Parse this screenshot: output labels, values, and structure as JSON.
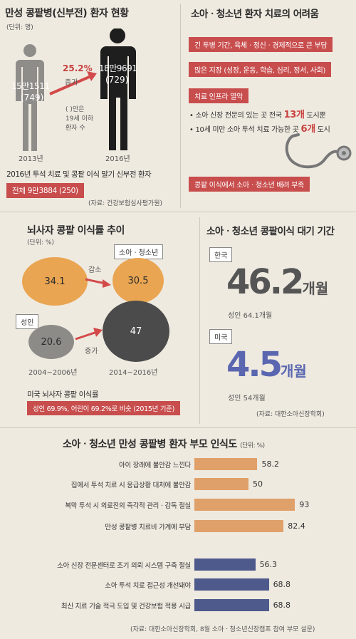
{
  "section1": {
    "title": "만성 콩팥병(신부전) 환자 현황",
    "unit": "(단위: 명)",
    "label_2013": "15만1511",
    "sub_2013": "(749)",
    "label_2016": "18만9691",
    "sub_2016": "(729)",
    "growth_pct": "25.2%",
    "growth_word": "증가",
    "note_line1": "(  )안은",
    "note_line2": "19세 이하",
    "note_line3": "환자 수",
    "year_a": "2013년",
    "year_b": "2016년",
    "sub_title": "2016년 투석 치료 및 콩팥 이식 말기 신부전 환자",
    "total_box": "전체 9만3884 (250)",
    "source": "(자료: 건강보험심사평가원)"
  },
  "section2": {
    "title": "소아ㆍ청소년 환자 치료의 어려움",
    "pill1": "긴 투병 기간, 육체ㆍ정신ㆍ경제적으로 큰 부담",
    "pill2": "많은 지장 (성장, 운동, 학습, 심리, 정서, 사회)",
    "pill3": "치료 인프라 열악",
    "bullet1_pre": "• 소아 신장 전문의 있는 곳  전국 ",
    "bullet1_num": "13개",
    "bullet1_post": " 도시뿐",
    "bullet2_pre": "• 10세 미만 소아 투석 치료 가능한 곳  ",
    "bullet2_num": "6개",
    "bullet2_post": " 도시",
    "pill4": "콩팥 이식에서 소아ㆍ청소년 배려 부족"
  },
  "section3": {
    "title": "뇌사자 콩팥 이식률 추이",
    "unit": "(단위: %)",
    "kids_tag": "소아ㆍ청소년",
    "adult_tag": "성인",
    "decrease": "감소",
    "increase": "증가",
    "period_a": "2004~2006년",
    "period_b": "2014~2016년",
    "us_title": "미국 뇌사자 콩팥 이식률",
    "us_box": "성인 69.9%, 어린이 69.2%로 비슷 (2015년 기준)"
  },
  "section4": {
    "title": "소아ㆍ청소년 콩팥이식 대기 기간",
    "korea_tag": "한국",
    "korea_value": "46.2",
    "korea_unit": "개월",
    "korea_adult": "성인 64.1개월",
    "us_tag": "미국",
    "us_value": "4.5",
    "us_unit": "개월",
    "us_adult": "성인 54개월",
    "source": "(자료: 대한소아신장학회)"
  },
  "section5": {
    "title": "소아ㆍ청소년 만성 콩팥병 환자 부모 인식도",
    "unit": "(단위: %)",
    "source": "(자료: 대한소아신장학회, 8월 소아ㆍ청소년신장캠프 참여 부모 설문)"
  },
  "colors": {
    "accent_red": "#c84d4d",
    "orange": "#e8a45b",
    "gray": "#8d8b88",
    "dark_gray": "#555",
    "bar_orange": "#e0a06a",
    "bar_blue": "#4e5a8c",
    "korea_num": "#555",
    "us_num": "#5a67b0"
  },
  "chart_data": [
    {
      "type": "bar",
      "categories": [
        "2013년",
        "2016년"
      ],
      "series": [
        {
          "values": [
            151511,
            189691
          ]
        },
        {
          "values": [
            749,
            729
          ]
        }
      ]
    },
    {
      "type": "scatter",
      "categories": [
        "2004~2006년",
        "2014~2016년"
      ],
      "series": [
        {
          "name": "소아ㆍ청소년",
          "values": [
            34.1,
            30.5
          ]
        },
        {
          "name": "성인",
          "values": [
            20.6,
            47
          ]
        }
      ]
    },
    {
      "type": "bar",
      "categories": [
        "한국",
        "미국"
      ],
      "series": [
        {
          "values": [
            46.2,
            4.5
          ]
        },
        {
          "values": [
            64.1,
            54
          ]
        }
      ]
    },
    {
      "type": "bar",
      "orientation": "horizontal",
      "categories": [
        "아이 장래에 불안감 느낀다",
        "집에서 투석 치료 시 응급상황 대처에 불안감",
        "복막 투석 시 의료진의 즉각적 관리ㆍ감독 절실",
        "만성 콩팥병 치료비 가계에 부담",
        "소아 신장 전문센터로 조기 의뢰 시스템 구축 절실",
        "소아 투석 치료 접근성 개선돼야",
        "최신 치료 기술 적극 도입 및 건강보험 적용 시급"
      ],
      "values": [
        58.2,
        50,
        93,
        82.4,
        56.3,
        68.8,
        68.8
      ],
      "xlim": [
        0,
        100
      ]
    }
  ]
}
